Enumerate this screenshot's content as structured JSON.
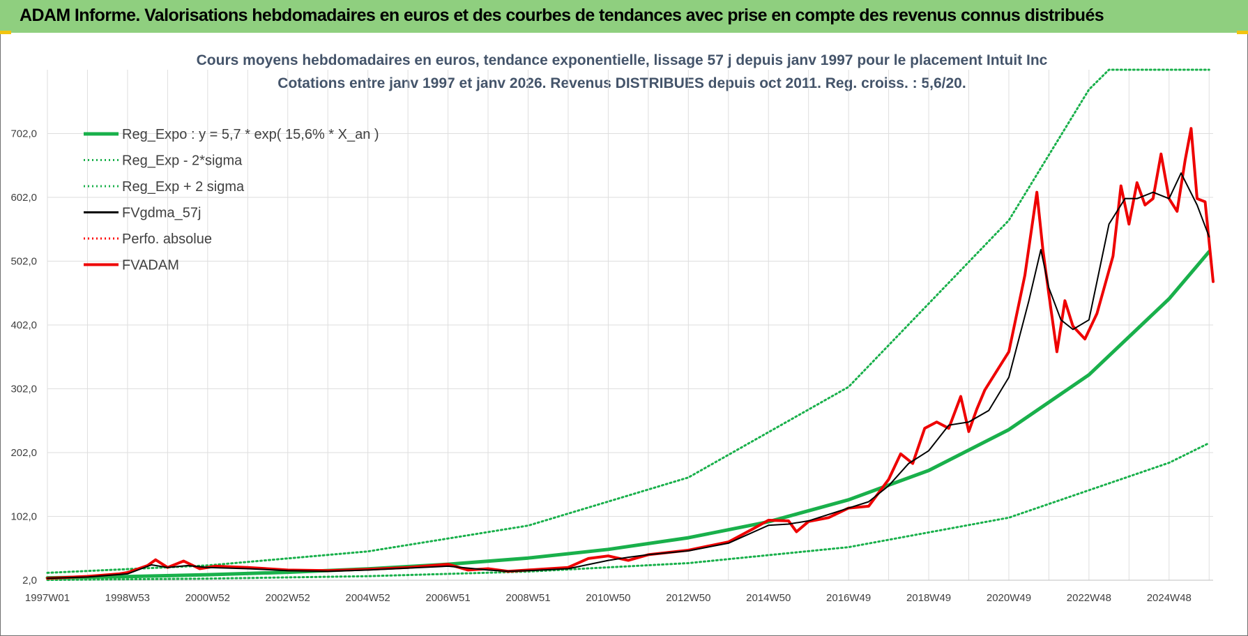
{
  "banner": {
    "title": "ADAM Informe. Valorisations hebdomadaires en euros et des courbes de tendances avec prise en compte des revenus connus distribués"
  },
  "chart_data": {
    "type": "line",
    "title_line1": "Cours moyens hebdomadaires en euros, tendance exponentielle, lissage 57 j depuis janv 1997  pour le placement Intuit Inc",
    "title_line2": "Cotations entre janv 1997 et janv 2026. Revenus DISTRIBUES depuis oct 2011. Reg. croiss. : 5,6/20.",
    "xlabel": "",
    "ylabel": "",
    "x_tick_labels": [
      "1997W01",
      "1998W53",
      "2000W52",
      "2002W52",
      "2004W52",
      "2006W51",
      "2008W51",
      "2010W50",
      "2012W50",
      "2014W50",
      "2016W49",
      "2018W49",
      "2020W49",
      "2022W48",
      "2024W48"
    ],
    "x_tick_years": [
      1997.0,
      1999.0,
      2001.0,
      2003.0,
      2005.0,
      2007.0,
      2009.0,
      2011.0,
      2013.0,
      2015.0,
      2017.0,
      2019.0,
      2021.0,
      2023.0,
      2025.0
    ],
    "xlim": [
      1997.0,
      2026.1
    ],
    "y_tick_labels": [
      "2,0",
      "102,0",
      "202,0",
      "302,0",
      "402,0",
      "502,0",
      "602,0",
      "702,0"
    ],
    "y_ticks": [
      2,
      102,
      202,
      302,
      402,
      502,
      602,
      702
    ],
    "ylim": [
      2,
      802
    ],
    "grid": true,
    "legend_position": "top-left",
    "regression": {
      "a": 5.7,
      "rate": 0.156,
      "sigma_factor_low": 0.42,
      "sigma_factor_high": 2.38
    },
    "series": [
      {
        "name": "Reg_Expo : y = 5,7 * exp( 15,6% *  X_an )",
        "color": "#19b04b",
        "style": "solid-thick",
        "x": [
          1997.0,
          1999.0,
          2001.0,
          2003.0,
          2005.0,
          2007.0,
          2009.0,
          2011.0,
          2013.0,
          2015.0,
          2017.0,
          2019.0,
          2021.0,
          2023.0,
          2025.0,
          2026.0
        ],
        "values": [
          5.7,
          7.8,
          10.6,
          14.5,
          19.8,
          27.0,
          36.8,
          50.3,
          68.6,
          93.6,
          128,
          174,
          238,
          324,
          443,
          517
        ]
      },
      {
        "name": "Reg_Exp - 2*sigma",
        "color": "#19b04b",
        "style": "dotted",
        "x": [
          1997.0,
          2001.0,
          2005.0,
          2009.0,
          2013.0,
          2017.0,
          2021.0,
          2025.0,
          2026.0
        ],
        "values": [
          2.4,
          4.5,
          8.3,
          15.5,
          28.8,
          53.8,
          100,
          186,
          217
        ]
      },
      {
        "name": "Reg_Exp + 2 sigma",
        "color": "#19b04b",
        "style": "dotted",
        "x": [
          1997.0,
          2001.0,
          2005.0,
          2009.0,
          2013.0,
          2017.0,
          2021.0,
          2023.0,
          2023.5,
          2026.0
        ],
        "values": [
          13.6,
          25.2,
          47.1,
          87.6,
          163,
          305,
          566,
          771,
          802,
          802
        ]
      },
      {
        "name": "FVgdma_57j",
        "color": "#000000",
        "style": "solid",
        "x": [
          1997.0,
          1998.0,
          1999.0,
          1999.6,
          2000.0,
          2000.5,
          2001.0,
          2002.0,
          2003.0,
          2004.0,
          2005.0,
          2006.0,
          2007.0,
          2008.0,
          2008.5,
          2009.0,
          2010.0,
          2011.0,
          2011.5,
          2012.0,
          2013.0,
          2014.0,
          2015.0,
          2015.5,
          2016.0,
          2017.0,
          2017.5,
          2018.0,
          2018.5,
          2019.0,
          2019.5,
          2020.0,
          2020.5,
          2021.0,
          2021.5,
          2021.8,
          2022.0,
          2022.3,
          2022.6,
          2023.0,
          2023.5,
          2023.9,
          2024.2,
          2024.6,
          2025.0,
          2025.3,
          2025.7,
          2026.0
        ],
        "values": [
          5,
          7,
          12,
          26,
          22,
          25,
          22,
          20,
          17,
          16,
          18,
          21,
          24,
          18,
          16,
          17,
          20,
          33,
          38,
          42,
          48,
          60,
          88,
          90,
          95,
          115,
          125,
          150,
          185,
          205,
          245,
          250,
          268,
          320,
          440,
          520,
          460,
          410,
          395,
          410,
          560,
          600,
          600,
          610,
          600,
          640,
          590,
          540
        ]
      },
      {
        "name": "Perfo. absolue",
        "color": "#ff0000",
        "style": "dotted",
        "x": [],
        "values": []
      },
      {
        "name": "FVADAM",
        "color": "#ee0000",
        "style": "solid-thick",
        "x": [
          1997.0,
          1998.0,
          1998.8,
          1999.0,
          1999.5,
          1999.7,
          2000.0,
          2000.4,
          2000.8,
          2001.2,
          2002.0,
          2003.0,
          2004.0,
          2005.0,
          2006.0,
          2007.0,
          2007.5,
          2008.0,
          2008.5,
          2009.0,
          2010.0,
          2010.5,
          2011.0,
          2011.5,
          2012.0,
          2013.0,
          2014.0,
          2014.6,
          2015.0,
          2015.5,
          2015.7,
          2016.0,
          2016.5,
          2017.0,
          2017.5,
          2018.0,
          2018.3,
          2018.6,
          2018.9,
          2019.2,
          2019.5,
          2019.8,
          2020.0,
          2020.2,
          2020.4,
          2020.8,
          2021.0,
          2021.4,
          2021.7,
          2021.85,
          2022.0,
          2022.2,
          2022.4,
          2022.6,
          2022.9,
          2023.2,
          2023.6,
          2023.8,
          2024.0,
          2024.2,
          2024.4,
          2024.6,
          2024.8,
          2025.0,
          2025.2,
          2025.4,
          2025.55,
          2025.7,
          2025.9,
          2026.1
        ],
        "values": [
          5,
          8,
          12,
          14,
          25,
          34,
          22,
          32,
          20,
          24,
          22,
          18,
          17,
          19,
          22,
          27,
          18,
          20,
          16,
          18,
          22,
          36,
          40,
          33,
          42,
          49,
          62,
          82,
          96,
          95,
          78,
          94,
          100,
          115,
          118,
          160,
          200,
          185,
          240,
          250,
          240,
          290,
          235,
          270,
          300,
          340,
          360,
          480,
          610,
          520,
          450,
          360,
          440,
          400,
          380,
          420,
          510,
          620,
          560,
          625,
          590,
          600,
          670,
          600,
          580,
          660,
          710,
          600,
          595,
          470
        ]
      }
    ]
  }
}
